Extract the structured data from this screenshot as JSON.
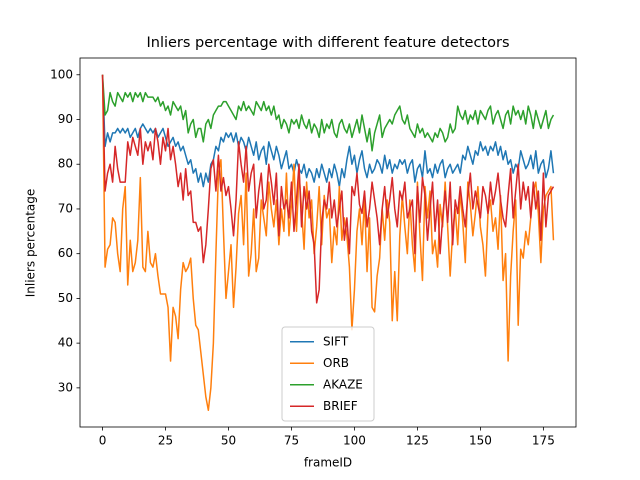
{
  "chart_data": {
    "type": "line",
    "title": "Inliers percentage with different feature detectors",
    "xlabel": "frameID",
    "ylabel": "Inliers percentage",
    "x": [
      0,
      1,
      2,
      3,
      4,
      5,
      6,
      7,
      8,
      9,
      10,
      11,
      12,
      13,
      14,
      15,
      16,
      17,
      18,
      19,
      20,
      21,
      22,
      23,
      24,
      25,
      26,
      27,
      28,
      29,
      30,
      31,
      32,
      33,
      34,
      35,
      36,
      37,
      38,
      39,
      40,
      41,
      42,
      43,
      44,
      45,
      46,
      47,
      48,
      49,
      50,
      51,
      52,
      53,
      54,
      55,
      56,
      57,
      58,
      59,
      60,
      61,
      62,
      63,
      64,
      65,
      66,
      67,
      68,
      69,
      70,
      71,
      72,
      73,
      74,
      75,
      76,
      77,
      78,
      79,
      80,
      81,
      82,
      83,
      84,
      85,
      86,
      87,
      88,
      89,
      90,
      91,
      92,
      93,
      94,
      95,
      96,
      97,
      98,
      99,
      100,
      101,
      102,
      103,
      104,
      105,
      106,
      107,
      108,
      109,
      110,
      111,
      112,
      113,
      114,
      115,
      116,
      117,
      118,
      119,
      120,
      121,
      122,
      123,
      124,
      125,
      126,
      127,
      128,
      129,
      130,
      131,
      132,
      133,
      134,
      135,
      136,
      137,
      138,
      139,
      140,
      141,
      142,
      143,
      144,
      145,
      146,
      147,
      148,
      149,
      150,
      151,
      152,
      153,
      154,
      155,
      156,
      157,
      158,
      159,
      160,
      161,
      162,
      163,
      164,
      165,
      166,
      167,
      168,
      169,
      170,
      171,
      172,
      173,
      174,
      175,
      176,
      177,
      178,
      179
    ],
    "series": [
      {
        "name": "SIFT",
        "color": "#1f77b4",
        "values": [
          100,
          84,
          87,
          85,
          87,
          87,
          88,
          87,
          88,
          87,
          88,
          86,
          87,
          88,
          86,
          88,
          89,
          88,
          87,
          88,
          87,
          88,
          86,
          87,
          88,
          86,
          84,
          85,
          86,
          84,
          85,
          83,
          84,
          82,
          80,
          81,
          78,
          79,
          76,
          78,
          75,
          78,
          76,
          80,
          81,
          84,
          83,
          86,
          85,
          87,
          86,
          87,
          85,
          87,
          84,
          86,
          85,
          83,
          86,
          84,
          82,
          85,
          81,
          83,
          84,
          80,
          85,
          83,
          81,
          84,
          82,
          79,
          81,
          83,
          79,
          80,
          78,
          81,
          79,
          78,
          80,
          77,
          79,
          78,
          76,
          79,
          77,
          80,
          78,
          76,
          79,
          77,
          80,
          78,
          75,
          79,
          77,
          81,
          84,
          80,
          82,
          78,
          81,
          83,
          79,
          77,
          80,
          78,
          79,
          81,
          80,
          78,
          82,
          79,
          81,
          78,
          80,
          79,
          81,
          80,
          81,
          78,
          80,
          81,
          76,
          79,
          80,
          77,
          83,
          78,
          79,
          77,
          80,
          78,
          80,
          81,
          77,
          79,
          80,
          78,
          79,
          80,
          78,
          82,
          81,
          84,
          82,
          80,
          83,
          82,
          85,
          83,
          84,
          82,
          84,
          83,
          85,
          82,
          84,
          81,
          83,
          80,
          81,
          78,
          80,
          79,
          83,
          81,
          79,
          80,
          82,
          79,
          83,
          78,
          80,
          81,
          77,
          79,
          83,
          78
        ]
      },
      {
        "name": "ORB",
        "color": "#ff7f0e",
        "values": [
          100,
          57,
          61,
          62,
          68,
          67,
          60,
          56,
          70,
          75,
          53,
          63,
          56,
          58,
          63,
          77,
          57,
          56,
          65,
          58,
          57,
          60,
          55,
          51,
          51,
          51,
          48,
          36,
          48,
          46,
          41,
          52,
          58,
          56,
          57,
          59,
          50,
          44,
          43,
          38,
          33,
          28,
          25,
          30,
          40,
          60,
          78,
          81,
          65,
          50,
          56,
          62,
          48,
          57,
          69,
          73,
          62,
          78,
          55,
          60,
          70,
          56,
          59,
          72,
          68,
          64,
          76,
          70,
          66,
          72,
          62,
          70,
          65,
          78,
          64,
          71,
          80,
          65,
          78,
          70,
          61,
          76,
          68,
          72,
          60,
          66,
          75,
          62,
          73,
          68,
          70,
          58,
          66,
          62,
          75,
          63,
          68,
          64,
          57,
          43,
          52,
          65,
          70,
          62,
          72,
          56,
          68,
          48,
          47,
          55,
          59,
          70,
          63,
          72,
          67,
          45,
          56,
          45,
          64,
          73,
          66,
          60,
          72,
          62,
          56,
          76,
          64,
          54,
          75,
          68,
          74,
          60,
          63,
          57,
          71,
          66,
          76,
          66,
          55,
          65,
          70,
          62,
          74,
          67,
          58,
          76,
          71,
          64,
          69,
          75,
          66,
          62,
          55,
          69,
          72,
          65,
          68,
          61,
          73,
          54,
          60,
          36,
          55,
          65,
          72,
          44,
          61,
          59,
          65,
          62,
          68,
          74,
          76,
          69,
          58,
          70,
          73,
          74,
          75,
          63
        ]
      },
      {
        "name": "AKAZE",
        "color": "#2ca02c",
        "values": [
          100,
          91,
          92,
          96,
          94,
          93,
          96,
          95,
          94,
          96,
          95,
          96,
          94,
          96,
          95,
          96,
          94,
          96,
          95,
          95,
          95,
          94,
          95,
          93,
          94,
          92,
          93,
          91,
          94,
          93,
          92,
          93,
          90,
          92,
          87,
          89,
          90,
          86,
          88,
          88,
          85,
          89,
          90,
          88,
          91,
          92,
          93,
          93,
          94,
          94,
          93,
          92,
          91,
          90,
          93,
          92,
          94,
          92,
          93,
          92,
          91,
          94,
          93,
          92,
          94,
          92,
          93,
          91,
          93,
          90,
          91,
          88,
          90,
          89,
          87,
          90,
          89,
          90,
          88,
          91,
          89,
          88,
          90,
          87,
          89,
          88,
          86,
          90,
          87,
          89,
          88,
          90,
          87,
          86,
          89,
          90,
          88,
          87,
          89,
          86,
          88,
          90,
          87,
          91,
          88,
          85,
          88,
          83,
          87,
          89,
          91,
          86,
          88,
          89,
          90,
          89,
          91,
          92,
          93,
          90,
          89,
          91,
          88,
          87,
          86,
          89,
          87,
          88,
          86,
          87,
          86,
          85,
          87,
          86,
          88,
          87,
          85,
          86,
          89,
          87,
          88,
          93,
          91,
          90,
          92,
          89,
          91,
          90,
          92,
          89,
          92,
          91,
          90,
          92,
          93,
          89,
          91,
          92,
          90,
          88,
          91,
          92,
          89,
          93,
          91,
          92,
          90,
          92,
          89,
          93,
          91,
          88,
          92,
          90,
          88,
          90,
          92,
          88,
          90,
          91
        ]
      },
      {
        "name": "BRIEF",
        "color": "#d62728",
        "values": [
          100,
          74,
          78,
          80,
          76,
          84,
          79,
          76,
          76,
          76,
          85,
          82,
          86,
          84,
          82,
          88,
          80,
          85,
          83,
          85,
          81,
          88,
          85,
          80,
          86,
          83,
          88,
          81,
          84,
          80,
          75,
          78,
          72,
          79,
          73,
          74,
          67,
          67,
          65,
          66,
          58,
          62,
          70,
          79,
          81,
          74,
          82,
          74,
          77,
          73,
          75,
          70,
          64,
          72,
          85,
          80,
          76,
          84,
          74,
          78,
          80,
          68,
          74,
          78,
          70,
          72,
          80,
          76,
          71,
          78,
          64,
          75,
          70,
          72,
          68,
          76,
          65,
          72,
          80,
          66,
          75,
          70,
          74,
          65,
          62,
          49,
          52,
          67,
          72,
          70,
          76,
          68,
          72,
          66,
          70,
          74,
          63,
          68,
          60,
          75,
          73,
          78,
          71,
          69,
          74,
          66,
          70,
          76,
          72,
          68,
          62,
          70,
          75,
          68,
          72,
          77,
          70,
          66,
          74,
          72,
          76,
          68,
          70,
          72,
          60,
          75,
          67,
          77,
          73,
          63,
          70,
          76,
          65,
          72,
          60,
          68,
          74,
          67,
          76,
          62,
          72,
          69,
          75,
          70,
          66,
          73,
          78,
          70,
          74,
          71,
          68,
          75,
          73,
          69,
          76,
          71,
          74,
          78,
          72,
          68,
          66,
          73,
          79,
          68,
          74,
          80,
          70,
          76,
          72,
          75,
          68,
          76,
          70,
          74,
          63,
          78,
          66,
          73,
          74,
          75
        ]
      }
    ],
    "xlim": [
      -8.95,
      187.95
    ],
    "ylim": [
      21.25,
      103.75
    ],
    "xticks": [
      0,
      25,
      50,
      75,
      100,
      125,
      150,
      175
    ],
    "yticks": [
      30,
      40,
      50,
      60,
      70,
      80,
      90,
      100
    ],
    "legend": "lower center"
  }
}
